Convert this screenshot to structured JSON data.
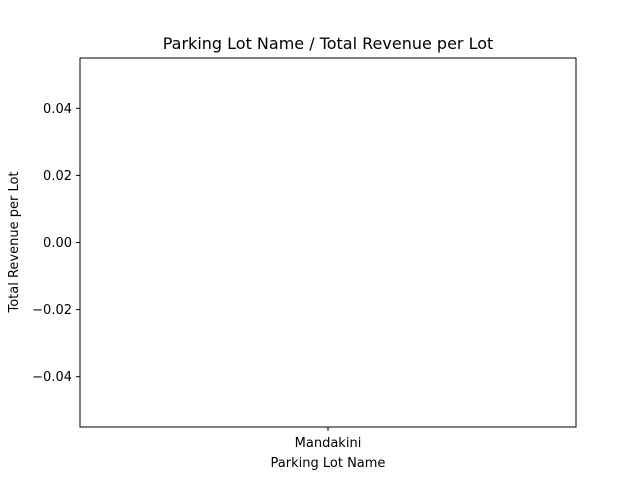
{
  "chart_data": {
    "type": "bar",
    "title": "Parking Lot Name / Total Revenue per Lot",
    "xlabel": "Parking Lot Name",
    "ylabel": "Total Revenue per Lot",
    "categories": [
      "Mandakini"
    ],
    "values": [
      0
    ],
    "ylim": [
      -0.055,
      0.055
    ],
    "yticks": [
      0.04,
      0.02,
      0.0,
      -0.02,
      -0.04
    ],
    "ytick_labels": [
      "0.04",
      "0.02",
      "0.00",
      "−0.02",
      "−0.04"
    ],
    "grid": false,
    "legend": "none"
  }
}
